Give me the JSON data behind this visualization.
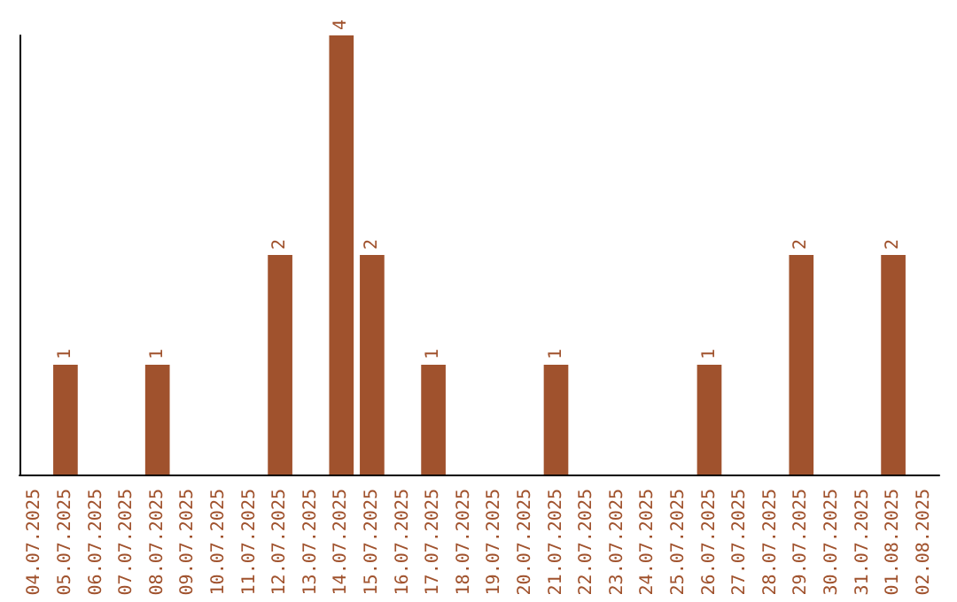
{
  "chart_data": {
    "type": "bar",
    "categories": [
      "04.07.2025",
      "05.07.2025",
      "06.07.2025",
      "07.07.2025",
      "08.07.2025",
      "09.07.2025",
      "10.07.2025",
      "11.07.2025",
      "12.07.2025",
      "13.07.2025",
      "14.07.2025",
      "15.07.2025",
      "16.07.2025",
      "17.07.2025",
      "18.07.2025",
      "19.07.2025",
      "20.07.2025",
      "21.07.2025",
      "22.07.2025",
      "23.07.2025",
      "24.07.2025",
      "25.07.2025",
      "26.07.2025",
      "27.07.2025",
      "28.07.2025",
      "29.07.2025",
      "30.07.2025",
      "31.07.2025",
      "01.08.2025",
      "02.08.2025"
    ],
    "values": [
      0,
      1,
      0,
      0,
      1,
      0,
      0,
      0,
      2,
      0,
      4,
      2,
      0,
      1,
      0,
      0,
      0,
      1,
      0,
      0,
      0,
      0,
      1,
      0,
      0,
      2,
      0,
      0,
      2,
      0
    ],
    "value_labels": [
      null,
      "1",
      null,
      null,
      "1",
      null,
      null,
      null,
      "2",
      null,
      "4",
      "2",
      null,
      "1",
      null,
      null,
      null,
      "1",
      null,
      null,
      null,
      null,
      "1",
      null,
      null,
      "2",
      null,
      null,
      "2",
      null
    ],
    "color": "#a0522d",
    "tick_labels": "x"
  }
}
